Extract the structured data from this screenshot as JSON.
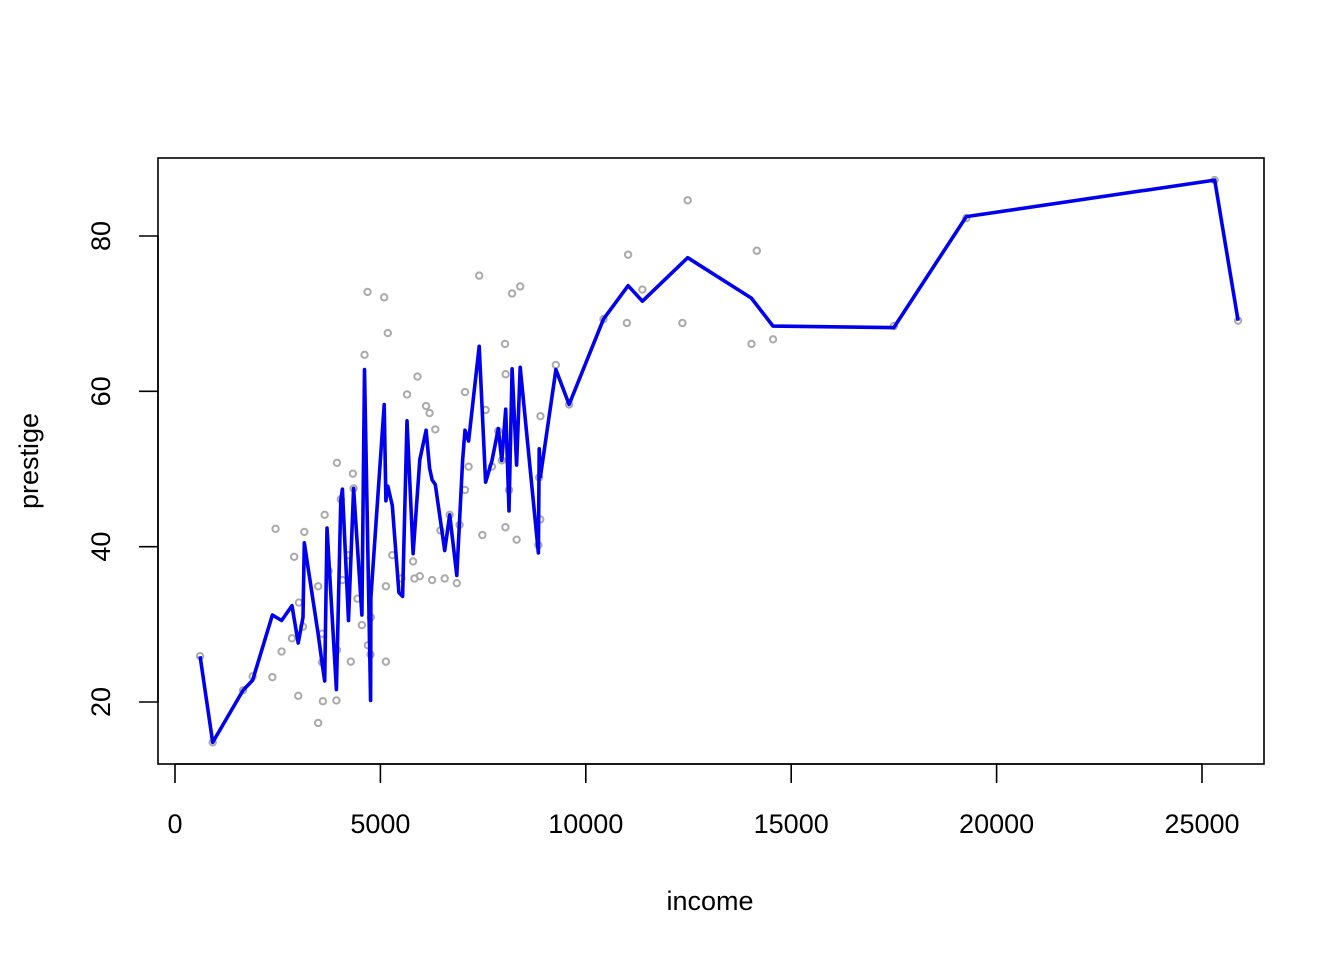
{
  "chart_data": {
    "type": "scatter",
    "title": "",
    "xlabel": "income",
    "ylabel": "prestige",
    "xlim": [
      0,
      27000
    ],
    "ylim": [
      15,
      87
    ],
    "x_ticks": [
      0,
      5000,
      10000,
      15000,
      20000,
      25000
    ],
    "y_ticks": [
      20,
      40,
      60,
      80
    ],
    "x_tick_labels": [
      "0",
      "5000",
      "10000",
      "15000",
      "20000",
      "25000"
    ],
    "y_tick_labels": [
      "20",
      "40",
      "60",
      "80"
    ],
    "grid": false,
    "legend": "none",
    "points_color": "#aaaaaa",
    "line_color": "#0000ee",
    "points": [
      [
        611,
        25.9
      ],
      [
        918,
        14.8
      ],
      [
        1656,
        21.5
      ],
      [
        1890,
        23.3
      ],
      [
        2370,
        23.2
      ],
      [
        2448,
        42.3
      ],
      [
        2594,
        26.5
      ],
      [
        2847,
        28.2
      ],
      [
        2901,
        38.7
      ],
      [
        3000,
        20.8
      ],
      [
        3016,
        32.8
      ],
      [
        3116,
        29.7
      ],
      [
        3148,
        41.9
      ],
      [
        3485,
        17.3
      ],
      [
        3485,
        34.9
      ],
      [
        3582,
        28.8
      ],
      [
        3582,
        25.1
      ],
      [
        3600,
        20.1
      ],
      [
        3643,
        44.1
      ],
      [
        3739,
        36.9
      ],
      [
        3930,
        20.2
      ],
      [
        3942,
        50.8
      ],
      [
        3943,
        26.7
      ],
      [
        4036,
        46.1
      ],
      [
        4075,
        35.7
      ],
      [
        4224,
        38.9
      ],
      [
        4280,
        25.2
      ],
      [
        4330,
        49.4
      ],
      [
        4348,
        47.5
      ],
      [
        4443,
        33.3
      ],
      [
        4549,
        29.9
      ],
      [
        4614,
        64.7
      ],
      [
        4686,
        72.8
      ],
      [
        4696,
        27.3
      ],
      [
        4761,
        26.1
      ],
      [
        4768,
        30.9
      ],
      [
        5092,
        72.1
      ],
      [
        5134,
        25.2
      ],
      [
        5134,
        34.9
      ],
      [
        5180,
        67.5
      ],
      [
        5290,
        38.9
      ],
      [
        5511,
        35.9
      ],
      [
        5648,
        59.6
      ],
      [
        5795,
        38.1
      ],
      [
        5830,
        35.9
      ],
      [
        5902,
        61.9
      ],
      [
        5959,
        36.2
      ],
      [
        6112,
        58.1
      ],
      [
        6197,
        57.2
      ],
      [
        6259,
        35.7
      ],
      [
        6336,
        55.1
      ],
      [
        6462,
        42.1
      ],
      [
        6565,
        35.9
      ],
      [
        6686,
        44.1
      ],
      [
        6860,
        35.3
      ],
      [
        6928,
        42.8
      ],
      [
        7059,
        47.3
      ],
      [
        7059,
        59.9
      ],
      [
        7147,
        50.3
      ],
      [
        7405,
        74.9
      ],
      [
        7482,
        41.5
      ],
      [
        7562,
        57.6
      ],
      [
        7716,
        50.3
      ],
      [
        7869,
        54.9
      ],
      [
        7956,
        51.1
      ],
      [
        8034,
        66.1
      ],
      [
        8043,
        42.5
      ],
      [
        8049,
        62.2
      ],
      [
        8131,
        47.3
      ],
      [
        8206,
        72.6
      ],
      [
        8316,
        40.9
      ],
      [
        8403,
        73.5
      ],
      [
        8845,
        40.2
      ],
      [
        8865,
        48.9
      ],
      [
        8895,
        56.8
      ],
      [
        8891,
        43.5
      ],
      [
        9271,
        63.4
      ],
      [
        9593,
        58.3
      ],
      [
        10432,
        69.3
      ],
      [
        11000,
        68.8
      ],
      [
        11030,
        77.6
      ],
      [
        11377,
        73.1
      ],
      [
        12351,
        68.8
      ],
      [
        12480,
        84.6
      ],
      [
        14032,
        66.1
      ],
      [
        14163,
        78.1
      ],
      [
        14558,
        66.7
      ],
      [
        17498,
        68.4
      ],
      [
        19263,
        82.3
      ],
      [
        25308,
        87.2
      ],
      [
        25879,
        69.1
      ]
    ],
    "series": [
      {
        "type": "line",
        "values": [
          [
            611,
            25.9
          ],
          [
            918,
            14.8
          ],
          [
            1656,
            21.5
          ],
          [
            1890,
            22.8
          ],
          [
            2370,
            31.2
          ],
          [
            2594,
            30.5
          ],
          [
            2847,
            32.4
          ],
          [
            3000,
            27.6
          ],
          [
            3116,
            30.9
          ],
          [
            3148,
            40.5
          ],
          [
            3485,
            28.7
          ],
          [
            3582,
            25.0
          ],
          [
            3643,
            22.7
          ],
          [
            3700,
            42.4
          ],
          [
            3930,
            21.6
          ],
          [
            4036,
            46.0
          ],
          [
            4075,
            47.4
          ],
          [
            4224,
            30.5
          ],
          [
            4348,
            47.5
          ],
          [
            4549,
            31.2
          ],
          [
            4614,
            62.8
          ],
          [
            4761,
            20.2
          ],
          [
            4768,
            33.5
          ],
          [
            5092,
            58.3
          ],
          [
            5134,
            45.9
          ],
          [
            5180,
            47.8
          ],
          [
            5290,
            45.3
          ],
          [
            5450,
            34.1
          ],
          [
            5540,
            33.6
          ],
          [
            5648,
            56.2
          ],
          [
            5795,
            39.1
          ],
          [
            5959,
            51.2
          ],
          [
            6112,
            55.0
          ],
          [
            6197,
            50.1
          ],
          [
            6259,
            48.6
          ],
          [
            6336,
            48.0
          ],
          [
            6565,
            39.5
          ],
          [
            6686,
            44.1
          ],
          [
            6860,
            36.3
          ],
          [
            7000,
            51.1
          ],
          [
            7059,
            55.0
          ],
          [
            7147,
            53.6
          ],
          [
            7405,
            65.8
          ],
          [
            7562,
            48.3
          ],
          [
            7716,
            51.1
          ],
          [
            7869,
            55.2
          ],
          [
            7956,
            51.1
          ],
          [
            8049,
            57.7
          ],
          [
            8131,
            44.6
          ],
          [
            8206,
            62.9
          ],
          [
            8316,
            50.5
          ],
          [
            8403,
            63.1
          ],
          [
            8845,
            39.2
          ],
          [
            8865,
            52.6
          ],
          [
            8895,
            49.0
          ],
          [
            9271,
            62.8
          ],
          [
            9593,
            58.3
          ],
          [
            10432,
            69.3
          ],
          [
            11030,
            73.6
          ],
          [
            11377,
            71.6
          ],
          [
            12480,
            77.2
          ],
          [
            14032,
            72.0
          ],
          [
            14558,
            68.4
          ],
          [
            17498,
            68.2
          ],
          [
            19263,
            82.5
          ],
          [
            25308,
            87.2
          ],
          [
            25879,
            69.1
          ]
        ]
      }
    ]
  }
}
